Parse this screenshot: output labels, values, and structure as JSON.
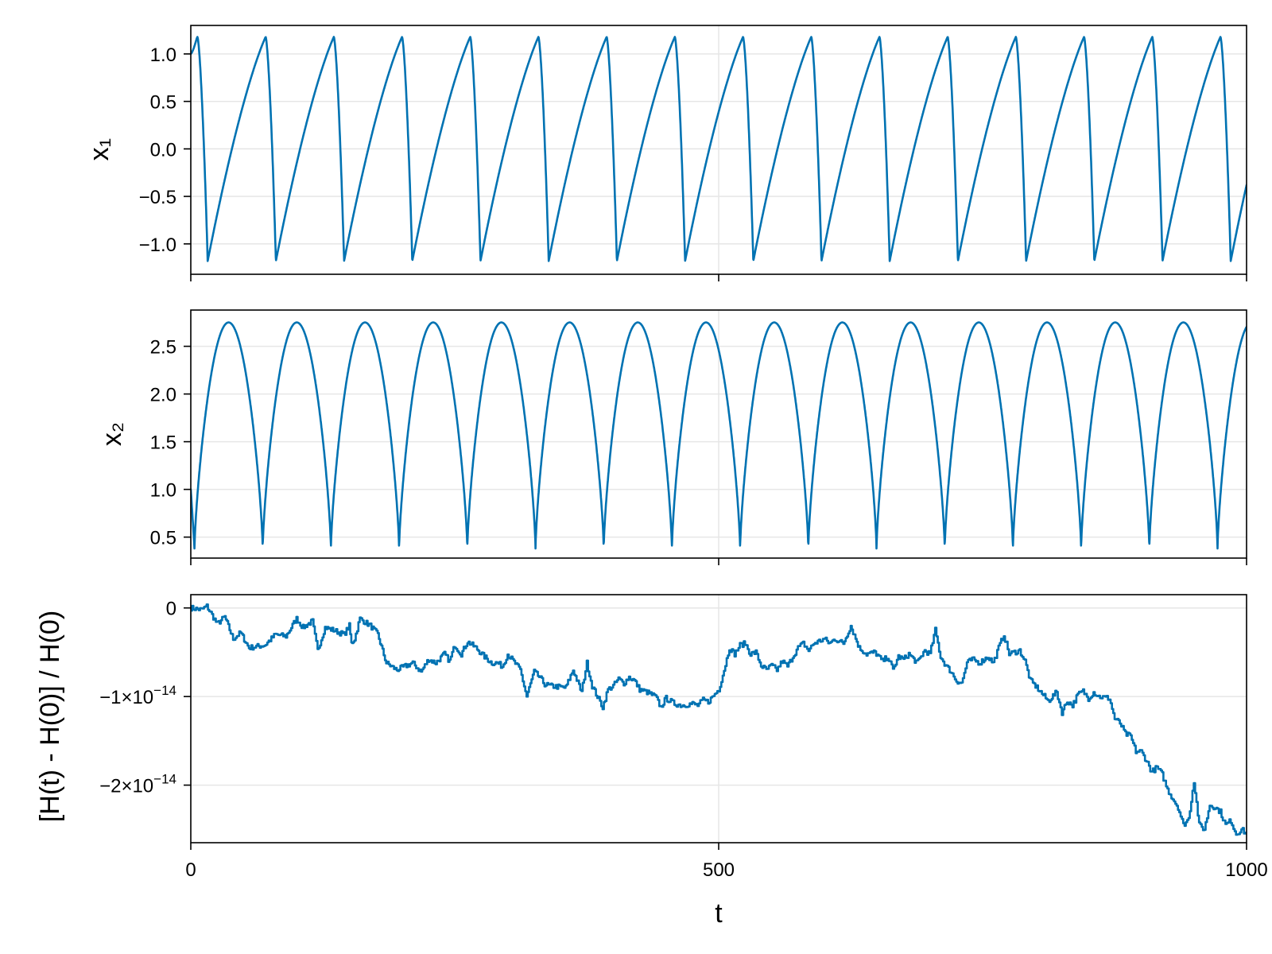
{
  "chart_data": [
    {
      "type": "line",
      "ylabel": "x₁",
      "xlim": [
        0,
        1000
      ],
      "ylim": [
        -1.32,
        1.3
      ],
      "x_ticks": [
        0,
        500,
        1000
      ],
      "y_ticks": [
        1.0,
        0.5,
        0.0,
        -0.5,
        -1.0
      ],
      "y_tick_labels": [
        "1.0",
        "0.5",
        "0.0",
        "−0.5",
        "−1.0"
      ],
      "x_tick_labels_shown": false,
      "grid": true,
      "color": "#0072b2",
      "series": [
        {
          "model": "relaxation",
          "period": 64.6,
          "rise_fraction": 0.85,
          "min": -1.18,
          "max": 1.18,
          "t_min_first": 16,
          "t0_value": 1.0
        }
      ]
    },
    {
      "type": "line",
      "ylabel": "x₂",
      "xlim": [
        0,
        1000
      ],
      "ylim": [
        0.28,
        2.88
      ],
      "x_ticks": [
        0,
        500,
        1000
      ],
      "y_ticks": [
        2.5,
        2.0,
        1.5,
        1.0,
        0.5
      ],
      "y_tick_labels": [
        "2.5",
        "2.0",
        "1.5",
        "1.0",
        "0.5"
      ],
      "x_tick_labels_shown": false,
      "grid": true,
      "color": "#0072b2",
      "series": [
        {
          "model": "cusped-arches",
          "period": 64.6,
          "min": 0.38,
          "max": 2.75,
          "first_cusp_t": 3.5,
          "t0_value": 1.0,
          "t_end_value": 2.68
        }
      ]
    },
    {
      "type": "line",
      "ylabel": "[H(t) - H(0)] / H(0)",
      "xlabel": "t",
      "xlim": [
        0,
        1000
      ],
      "ylim": [
        -2.65e-14,
        1.5e-15
      ],
      "x_ticks": [
        0,
        500,
        1000
      ],
      "x_tick_labels": [
        "0",
        "500",
        "1000"
      ],
      "y_ticks": [
        0,
        -1e-14,
        -2e-14
      ],
      "y_tick_labels": [
        {
          "base": "0",
          "exp": ""
        },
        {
          "base": "−1×10",
          "exp": "−14"
        },
        {
          "base": "−2×10",
          "exp": "−14"
        }
      ],
      "x_tick_labels_shown": true,
      "grid": true,
      "color": "#0072b2",
      "series": [
        {
          "model": "random-walk",
          "x": [
            0,
            10,
            15,
            25,
            32,
            40,
            47,
            55,
            70,
            80,
            90,
            100,
            106,
            115,
            120,
            127,
            135,
            145,
            150,
            152,
            155,
            160,
            170,
            177,
            185,
            195,
            210,
            218,
            225,
            232,
            240,
            245,
            250,
            256,
            262,
            270,
            278,
            285,
            290,
            295,
            300,
            312,
            318,
            325,
            330,
            335,
            340,
            355,
            362,
            370,
            375,
            380,
            385,
            390,
            395,
            400,
            405,
            410,
            415,
            420,
            425,
            432,
            440,
            445,
            450,
            458,
            465,
            475,
            480,
            485,
            490,
            500,
            505,
            510,
            515,
            520,
            525,
            530,
            535,
            540,
            545,
            550,
            555,
            560,
            565,
            570,
            575,
            580,
            585,
            590,
            600,
            605,
            610,
            618,
            625,
            633,
            640,
            648,
            655,
            660,
            665,
            670,
            675,
            680,
            688,
            695,
            700,
            705,
            710,
            715,
            720,
            725,
            730,
            735,
            740,
            747,
            755,
            760,
            765,
            770,
            775,
            785,
            790,
            795,
            800,
            805,
            812,
            820,
            825,
            830,
            835,
            840,
            845,
            850,
            855,
            860,
            870,
            875,
            880,
            885,
            890,
            895,
            900,
            905,
            910,
            915,
            920,
            925,
            930,
            935,
            940,
            945,
            950,
            955,
            960,
            965,
            970,
            975,
            980,
            985,
            990,
            995,
            1000
          ],
          "y": [
            0.0,
            -2e-16,
            2e-16,
            -1.8e-15,
            -1e-15,
            -3.5e-15,
            -2.8e-15,
            -4.5e-15,
            -4.2e-15,
            -3e-15,
            -3.2e-15,
            -1.2e-15,
            -2.2e-15,
            -1.5e-15,
            -4.8e-15,
            -2.2e-15,
            -2.5e-15,
            -3e-15,
            -2e-15,
            -4e-15,
            -3.5e-15,
            -1.2e-15,
            -2e-15,
            -3e-15,
            -6.2e-15,
            -7e-15,
            -6.2e-15,
            -7.2e-15,
            -5.8e-15,
            -6.2e-15,
            -5.2e-15,
            -6e-15,
            -4.2e-15,
            -5.2e-15,
            -3.8e-15,
            -4.5e-15,
            -5.5e-15,
            -6.2e-15,
            -6.2e-15,
            -6.6e-15,
            -5.2e-15,
            -7e-15,
            -1e-14,
            -7.2e-15,
            -7.8e-15,
            -8.6e-15,
            -8.8e-15,
            -9e-15,
            -7e-15,
            -9.5e-15,
            -6.2e-15,
            -8.8e-15,
            -1e-14,
            -1.12e-14,
            -9.2e-15,
            -8.8e-15,
            -8e-15,
            -8.5e-15,
            -7.8e-15,
            -8.2e-15,
            -9.2e-15,
            -9.5e-15,
            -1e-14,
            -1.12e-14,
            -1.02e-14,
            -1.08e-14,
            -1.1e-14,
            -1.08e-14,
            -1.1e-14,
            -1.04e-14,
            -1.06e-14,
            -9.2e-15,
            -7e-15,
            -4.5e-15,
            -5.2e-15,
            -4.2e-15,
            -4e-15,
            -5.2e-15,
            -5e-15,
            -6.5e-15,
            -7e-15,
            -6.5e-15,
            -7e-15,
            -6e-15,
            -6.6e-15,
            -5.5e-15,
            -4.5e-15,
            -4e-15,
            -4.8e-15,
            -4e-15,
            -3.5e-15,
            -4e-15,
            -3.5e-15,
            -4e-15,
            -2e-15,
            -4.5e-15,
            -5.2e-15,
            -5e-15,
            -6e-15,
            -5.5e-15,
            -7e-15,
            -5.5e-15,
            -5.8e-15,
            -5.2e-15,
            -6.2e-15,
            -4.8e-15,
            -5.2e-15,
            -2.5e-15,
            -5.5e-15,
            -6.5e-15,
            -7.2e-15,
            -8.2e-15,
            -8.5e-15,
            -6.2e-15,
            -5.8e-15,
            -6.2e-15,
            -5.5e-15,
            -6.2e-15,
            -4.5e-15,
            -3e-15,
            -5.2e-15,
            -4.8e-15,
            -6e-15,
            -8.2e-15,
            -8.8e-15,
            -9.5e-15,
            -1.05e-14,
            -9.5e-15,
            -1.18e-14,
            -1.05e-14,
            -1.1e-14,
            -9.8e-15,
            -9.4e-15,
            -1.02e-14,
            -9.5e-15,
            -1e-14,
            -1.02e-14,
            -1.25e-14,
            -1.3e-14,
            -1.42e-14,
            -1.45e-14,
            -1.62e-14,
            -1.62e-14,
            -1.72e-14,
            -1.85e-14,
            -1.8e-14,
            -1.88e-14,
            -2.05e-14,
            -2.15e-14,
            -2.25e-14,
            -2.45e-14,
            -2.38e-14,
            -1.95e-14,
            -2.45e-14,
            -2.5e-14,
            -2.22e-14,
            -2.25e-14,
            -2.3e-14,
            -2.45e-14,
            -2.4e-14,
            -2.55e-14,
            -2.5e-14,
            -2.55e-14
          ]
        }
      ]
    }
  ]
}
